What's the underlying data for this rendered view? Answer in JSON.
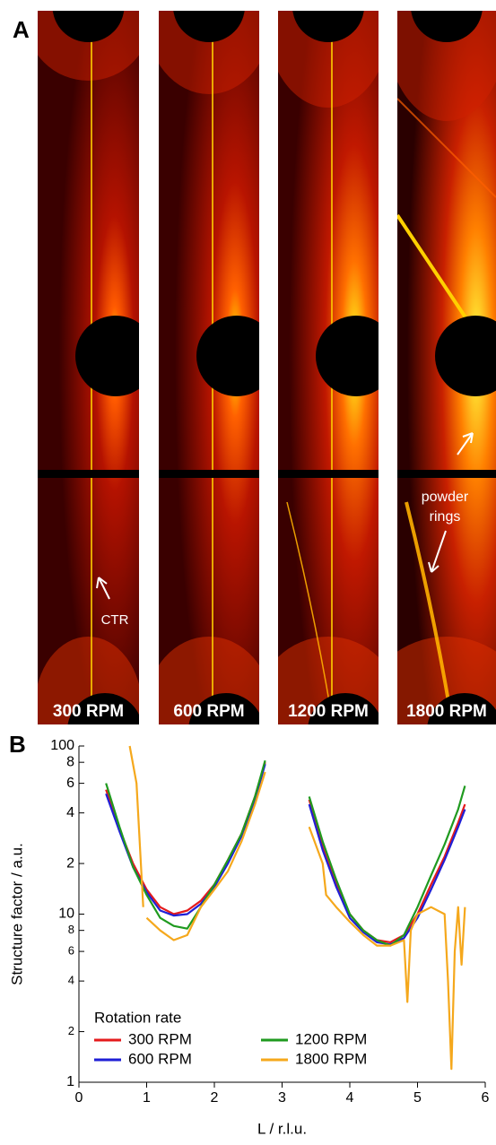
{
  "panel_a": {
    "label": "A",
    "images": [
      {
        "label": "300 RPM"
      },
      {
        "label": "600 RPM"
      },
      {
        "label": "1200 RPM"
      },
      {
        "label": "1800 RPM"
      }
    ],
    "annotations": {
      "ctr": "CTR",
      "powder_rings": [
        "powder",
        "rings"
      ]
    }
  },
  "panel_b": {
    "label": "B"
  },
  "chart_data": {
    "type": "line",
    "x_label": "L / r.l.u.",
    "y_label": "Structure factor / a.u.",
    "log_y": true,
    "xlim": [
      0,
      6
    ],
    "ylim": [
      1,
      100
    ],
    "xticks": [
      0,
      1,
      2,
      3,
      4,
      5,
      6
    ],
    "yticks": [
      1,
      2,
      4,
      6,
      8,
      10,
      {
        "value": 20,
        "label": "2"
      },
      {
        "value": 40,
        "label": "4"
      },
      {
        "value": 60,
        "label": "6"
      },
      {
        "value": 80,
        "label": "8"
      },
      100
    ],
    "legend_title": "Rotation rate",
    "legend": "lower left",
    "series": [
      {
        "name": "300 RPM",
        "color": "#e41a1c",
        "x": [
          0.4,
          0.6,
          0.8,
          1.0,
          1.2,
          1.4,
          1.6,
          1.8,
          2.0,
          2.2,
          2.4,
          2.6,
          2.75,
          null,
          3.4,
          3.6,
          3.8,
          4.0,
          4.2,
          4.4,
          4.6,
          4.8,
          5.0,
          5.2,
          5.4,
          5.6,
          5.7
        ],
        "values": [
          55,
          32,
          20,
          14,
          11,
          10,
          10.5,
          12,
          15,
          21,
          30,
          50,
          80,
          null,
          48,
          25,
          15,
          10,
          8,
          7,
          6.8,
          7.5,
          10,
          15,
          22,
          35,
          45
        ]
      },
      {
        "name": "600 RPM",
        "color": "#1f1fd6",
        "x": [
          0.4,
          0.6,
          0.8,
          1.0,
          1.2,
          1.4,
          1.6,
          1.8,
          2.0,
          2.2,
          2.4,
          2.6,
          2.75,
          null,
          3.4,
          3.6,
          3.8,
          4.0,
          4.2,
          4.4,
          4.6,
          4.8,
          5.0,
          5.2,
          5.4,
          5.6,
          5.7
        ],
        "values": [
          52,
          31,
          19,
          13.5,
          10.5,
          9.8,
          10,
          11.5,
          14.5,
          20,
          29,
          48,
          78,
          null,
          45,
          24,
          14.5,
          9.5,
          7.8,
          6.8,
          6.6,
          7.2,
          9.5,
          14,
          21,
          33,
          42
        ]
      },
      {
        "name": "1200 RPM",
        "color": "#1f9a1f",
        "x": [
          0.4,
          0.6,
          0.8,
          1.0,
          1.2,
          1.4,
          1.6,
          1.8,
          2.0,
          2.2,
          2.4,
          2.6,
          2.75,
          null,
          3.4,
          3.6,
          3.8,
          4.0,
          4.2,
          4.4,
          4.6,
          4.8,
          5.0,
          5.2,
          5.4,
          5.6,
          5.7
        ],
        "values": [
          60,
          33,
          19,
          13,
          9.5,
          8.5,
          8.2,
          11,
          15,
          21,
          30,
          50,
          82,
          null,
          50,
          27,
          16,
          10,
          8,
          7,
          6.5,
          7.5,
          11,
          17,
          26,
          42,
          58
        ]
      },
      {
        "name": "1800 RPM",
        "color": "#f5a81c",
        "x": [
          0.75,
          0.85,
          0.95,
          null,
          1.0,
          1.2,
          1.4,
          1.6,
          1.8,
          2.0,
          2.2,
          2.4,
          2.6,
          2.75,
          null,
          3.4,
          3.6,
          3.65,
          3.8,
          4.0,
          4.2,
          4.4,
          4.6,
          4.8,
          4.85,
          4.9,
          5.0,
          5.2,
          5.4,
          5.45,
          5.5,
          5.55,
          5.6,
          5.65,
          5.7
        ],
        "values": [
          100,
          60,
          11,
          null,
          9.5,
          8,
          7,
          7.5,
          11,
          14,
          18,
          27,
          45,
          70,
          null,
          33,
          20,
          13,
          11,
          9,
          7.5,
          6.5,
          6.5,
          7,
          3,
          8,
          10,
          11,
          10,
          4,
          1.2,
          6,
          11,
          5,
          11
        ]
      }
    ]
  }
}
